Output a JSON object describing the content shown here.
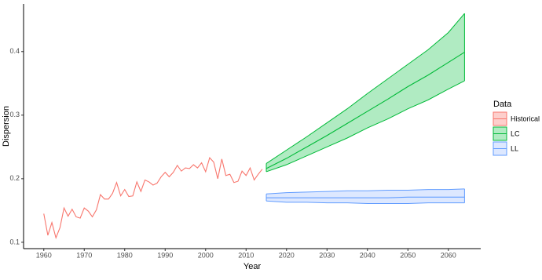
{
  "chart_data": {
    "type": "line",
    "x_label": "Year",
    "y_label": "Dispersion",
    "xlim": [
      1955,
      2068
    ],
    "ylim": [
      0.09,
      0.475
    ],
    "xticks": [
      1960,
      1970,
      1980,
      1990,
      2000,
      2010,
      2020,
      2030,
      2040,
      2050,
      2060
    ],
    "yticks": [
      0.1,
      0.2,
      0.3,
      0.4
    ],
    "legend_title": "Data",
    "legend_position": "right",
    "grid": false,
    "series": [
      {
        "name": "Historical",
        "color": "#F8766D",
        "x": [
          1960,
          1961,
          1962,
          1963,
          1964,
          1965,
          1966,
          1967,
          1968,
          1969,
          1970,
          1971,
          1972,
          1973,
          1974,
          1975,
          1976,
          1977,
          1978,
          1979,
          1980,
          1981,
          1982,
          1983,
          1984,
          1985,
          1986,
          1987,
          1988,
          1989,
          1990,
          1991,
          1992,
          1993,
          1994,
          1995,
          1996,
          1997,
          1998,
          1999,
          2000,
          2001,
          2002,
          2003,
          2004,
          2005,
          2006,
          2007,
          2008,
          2009,
          2010,
          2011,
          2012,
          2013,
          2014
        ],
        "values": [
          0.145,
          0.111,
          0.131,
          0.107,
          0.123,
          0.154,
          0.141,
          0.152,
          0.14,
          0.138,
          0.154,
          0.149,
          0.14,
          0.151,
          0.175,
          0.168,
          0.168,
          0.177,
          0.194,
          0.173,
          0.183,
          0.172,
          0.173,
          0.195,
          0.18,
          0.198,
          0.195,
          0.19,
          0.193,
          0.203,
          0.21,
          0.203,
          0.21,
          0.221,
          0.212,
          0.217,
          0.216,
          0.222,
          0.217,
          0.225,
          0.211,
          0.233,
          0.226,
          0.2,
          0.231,
          0.205,
          0.207,
          0.194,
          0.196,
          0.212,
          0.205,
          0.217,
          0.198,
          0.207,
          0.215
        ]
      },
      {
        "name": "LC",
        "color": "#00BA38",
        "fill": "#7CDD9A",
        "x": [
          2015,
          2020,
          2025,
          2030,
          2035,
          2040,
          2045,
          2050,
          2055,
          2060,
          2064
        ],
        "values": [
          0.216,
          0.232,
          0.25,
          0.268,
          0.287,
          0.306,
          0.325,
          0.345,
          0.363,
          0.383,
          0.399
        ],
        "lower": [
          0.211,
          0.222,
          0.236,
          0.25,
          0.264,
          0.28,
          0.294,
          0.31,
          0.324,
          0.341,
          0.354
        ],
        "upper": [
          0.224,
          0.245,
          0.266,
          0.288,
          0.31,
          0.334,
          0.357,
          0.38,
          0.403,
          0.43,
          0.46
        ]
      },
      {
        "name": "LL",
        "color": "#619CFF",
        "fill": "#C6D9FF",
        "x": [
          2015,
          2020,
          2025,
          2030,
          2035,
          2040,
          2045,
          2050,
          2055,
          2060,
          2064
        ],
        "values": [
          0.17,
          0.17,
          0.17,
          0.17,
          0.17,
          0.17,
          0.17,
          0.171,
          0.171,
          0.171,
          0.171
        ],
        "lower": [
          0.165,
          0.163,
          0.163,
          0.162,
          0.162,
          0.161,
          0.161,
          0.161,
          0.162,
          0.162,
          0.162
        ],
        "upper": [
          0.176,
          0.178,
          0.179,
          0.18,
          0.181,
          0.181,
          0.182,
          0.182,
          0.183,
          0.183,
          0.184
        ]
      }
    ]
  }
}
